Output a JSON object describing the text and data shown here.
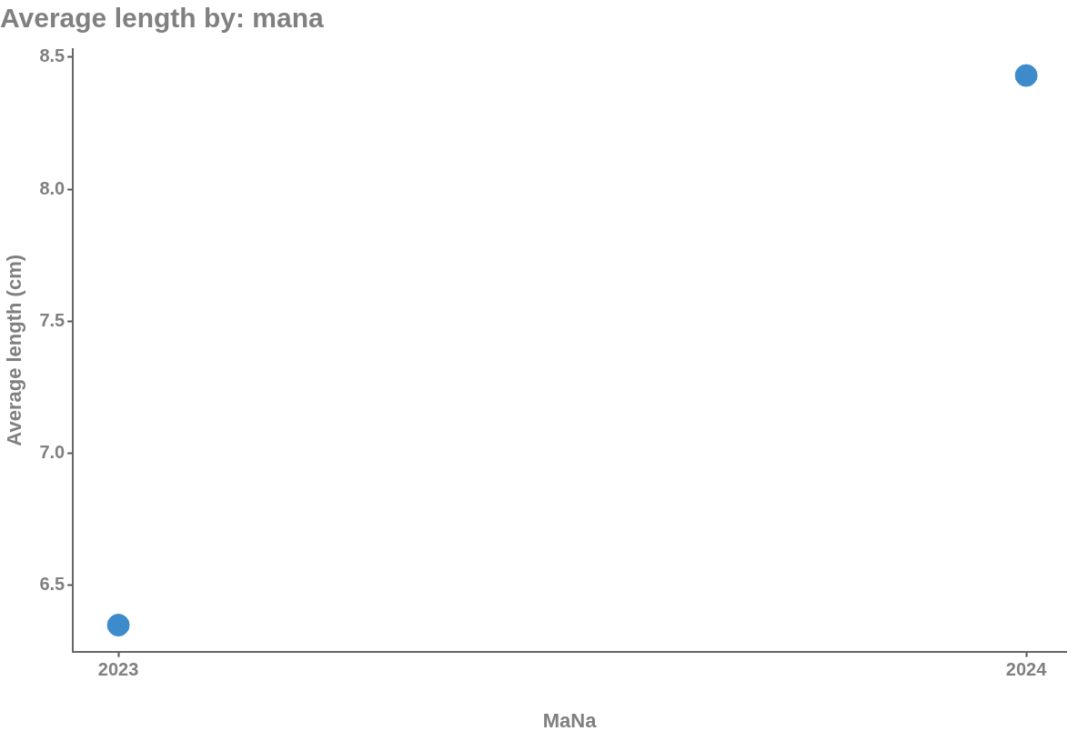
{
  "chart_data": {
    "type": "scatter",
    "title": "Average length by: mana",
    "xlabel": "MaNa",
    "ylabel": "Average length (cm)",
    "x": [
      2023,
      2024
    ],
    "series": [
      {
        "color": "#3d8bcb",
        "values": [
          6.35,
          8.43
        ]
      }
    ],
    "xlim": [
      2022.95,
      2024.044
    ],
    "xticks": [
      2023,
      2024
    ],
    "ylim": [
      6.25,
      8.53
    ],
    "yticks": [
      {
        "value": 6.5,
        "label": "6.5"
      },
      {
        "value": 7,
        "label": "7.0"
      },
      {
        "value": 7.5,
        "label": "7.5"
      },
      {
        "value": 8,
        "label": "8.0"
      },
      {
        "value": 8.5,
        "label": "8.5"
      }
    ],
    "grid": false,
    "legend": false,
    "marker": "circle"
  }
}
